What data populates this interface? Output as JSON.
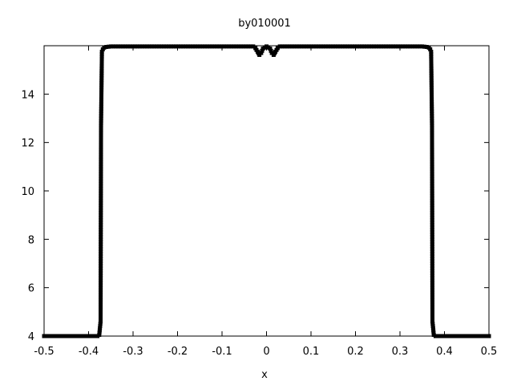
{
  "chart_data": {
    "type": "line",
    "title": "by010001",
    "xlabel": "x",
    "ylabel": "",
    "xlim": [
      -0.5,
      0.5
    ],
    "ylim": [
      4,
      16
    ],
    "x_ticks": [
      -0.5,
      -0.4,
      -0.3,
      -0.2,
      -0.1,
      0,
      0.1,
      0.2,
      0.3,
      0.4,
      0.5
    ],
    "x_tick_labels": [
      "-0.5",
      "-0.4",
      "-0.3",
      "-0.2",
      "-0.1",
      "0",
      "0.1",
      "0.2",
      "0.3",
      "0.4",
      "0.5"
    ],
    "y_ticks": [
      4,
      6,
      8,
      10,
      12,
      14
    ],
    "y_tick_labels": [
      "4",
      "6",
      "8",
      "10",
      "12",
      "14"
    ],
    "grid": false,
    "legend": "none",
    "series": [
      {
        "color": "#000000",
        "marker": "filled-square",
        "points": [
          [
            -0.5,
            4.0
          ],
          [
            -0.38,
            4.0
          ],
          [
            -0.376,
            4.05
          ],
          [
            -0.373,
            4.6
          ],
          [
            -0.372,
            12.7
          ],
          [
            -0.37,
            15.75
          ],
          [
            -0.368,
            15.85
          ],
          [
            -0.365,
            15.92
          ],
          [
            -0.36,
            15.95
          ],
          [
            -0.35,
            15.97
          ],
          [
            -0.03,
            15.97
          ],
          [
            -0.025,
            15.9
          ],
          [
            -0.02,
            15.75
          ],
          [
            -0.016,
            15.62
          ],
          [
            -0.012,
            15.7
          ],
          [
            -0.008,
            15.88
          ],
          [
            0.0,
            15.97
          ],
          [
            0.008,
            15.88
          ],
          [
            0.012,
            15.7
          ],
          [
            0.016,
            15.62
          ],
          [
            0.02,
            15.75
          ],
          [
            0.025,
            15.9
          ],
          [
            0.03,
            15.97
          ],
          [
            0.35,
            15.97
          ],
          [
            0.36,
            15.95
          ],
          [
            0.365,
            15.92
          ],
          [
            0.368,
            15.85
          ],
          [
            0.37,
            15.75
          ],
          [
            0.372,
            12.7
          ],
          [
            0.373,
            4.6
          ],
          [
            0.376,
            4.05
          ],
          [
            0.38,
            4.0
          ],
          [
            0.5,
            4.0
          ]
        ]
      }
    ]
  }
}
